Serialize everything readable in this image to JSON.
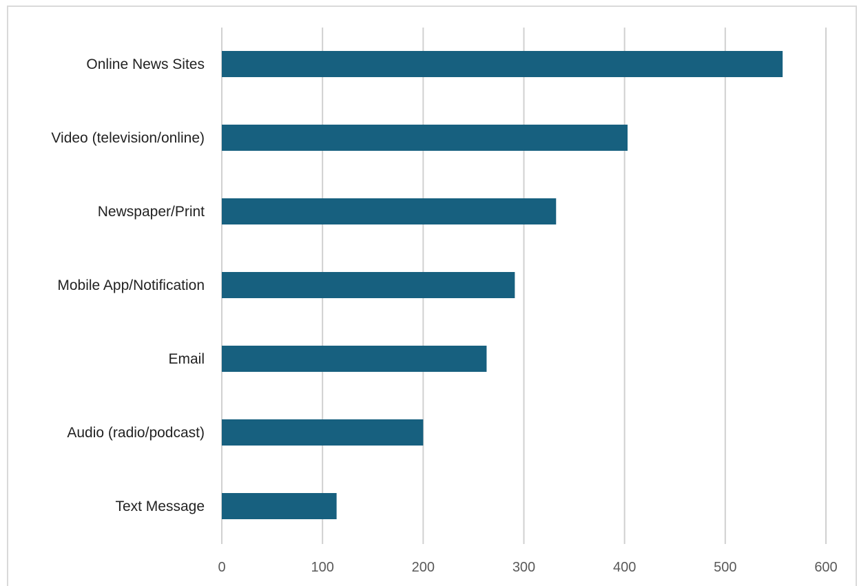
{
  "chart_data": {
    "type": "bar",
    "orientation": "horizontal",
    "categories": [
      "Online News Sites",
      "Video (television/online)",
      "Newspaper/Print",
      "Mobile App/Notification",
      "Email",
      "Audio (radio/podcast)",
      "Text Message"
    ],
    "values": [
      557,
      403,
      332,
      291,
      263,
      200,
      114
    ],
    "xlim": [
      0,
      600
    ],
    "x_ticks": [
      "0",
      "100",
      "200",
      "300",
      "400",
      "500",
      "600"
    ],
    "grid": "vertical",
    "legend": "none",
    "bar_color": "#17607f"
  }
}
